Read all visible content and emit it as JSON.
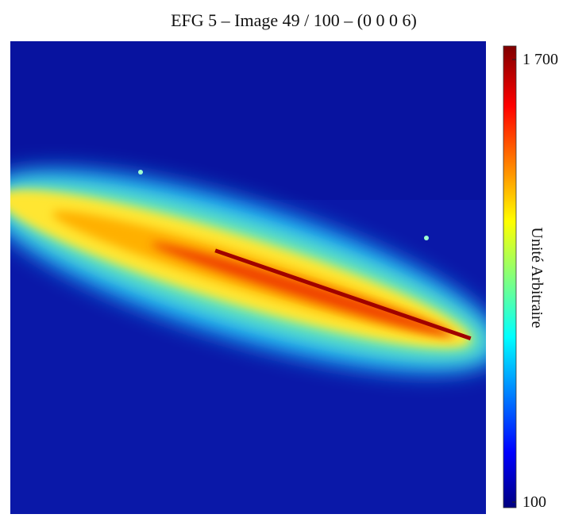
{
  "chart_data": {
    "type": "heatmap",
    "title": "EFG 5 – Image 49 / 100 – (0 0 0 6)",
    "colorbar": {
      "label": "Unité Arbitraire",
      "lim": [
        100,
        1700
      ],
      "colormap": "jet",
      "ticks": [
        100,
        {
          "value": 1700,
          "label": "1 700"
        }
      ]
    }
  }
}
